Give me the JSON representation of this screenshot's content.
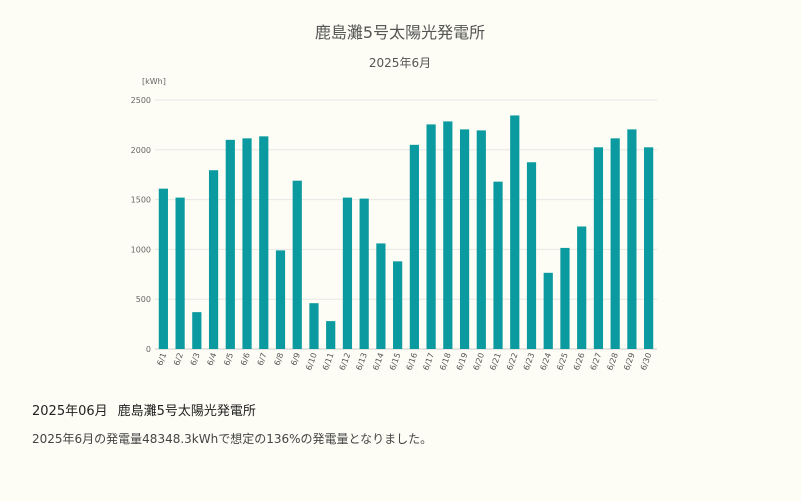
{
  "chart_data": {
    "type": "bar",
    "title": "鹿島灘5号太陽光発電所",
    "subtitle": "2025年6月",
    "unit_label": "[kWh]",
    "ylim": [
      0,
      2500
    ],
    "yticks": [
      0,
      500,
      1000,
      1500,
      2000,
      2500
    ],
    "grid": true,
    "legend": "none",
    "bar_color": "#0a9a9f",
    "categories": [
      "6/1",
      "6/2",
      "6/3",
      "6/4",
      "6/5",
      "6/6",
      "6/7",
      "6/8",
      "6/9",
      "6/10",
      "6/11",
      "6/12",
      "6/13",
      "6/14",
      "6/15",
      "6/16",
      "6/17",
      "6/18",
      "6/19",
      "6/20",
      "6/21",
      "6/22",
      "6/23",
      "6/24",
      "6/25",
      "6/26",
      "6/27",
      "6/28",
      "6/29",
      "6/30"
    ],
    "values": [
      1610,
      1520,
      370,
      1795,
      2100,
      2115,
      2135,
      990,
      1690,
      460,
      280,
      1520,
      1510,
      1060,
      880,
      2050,
      2255,
      2285,
      2205,
      2195,
      1680,
      2345,
      1875,
      765,
      1015,
      1230,
      2025,
      2115,
      2205,
      2025
    ]
  },
  "summary": {
    "period": "2025年06月",
    "plant_name": "鹿島灘5号太陽光発電所",
    "text": "2025年6月の発電量48348.3kWhで想定の136%の発電量となりました。"
  }
}
